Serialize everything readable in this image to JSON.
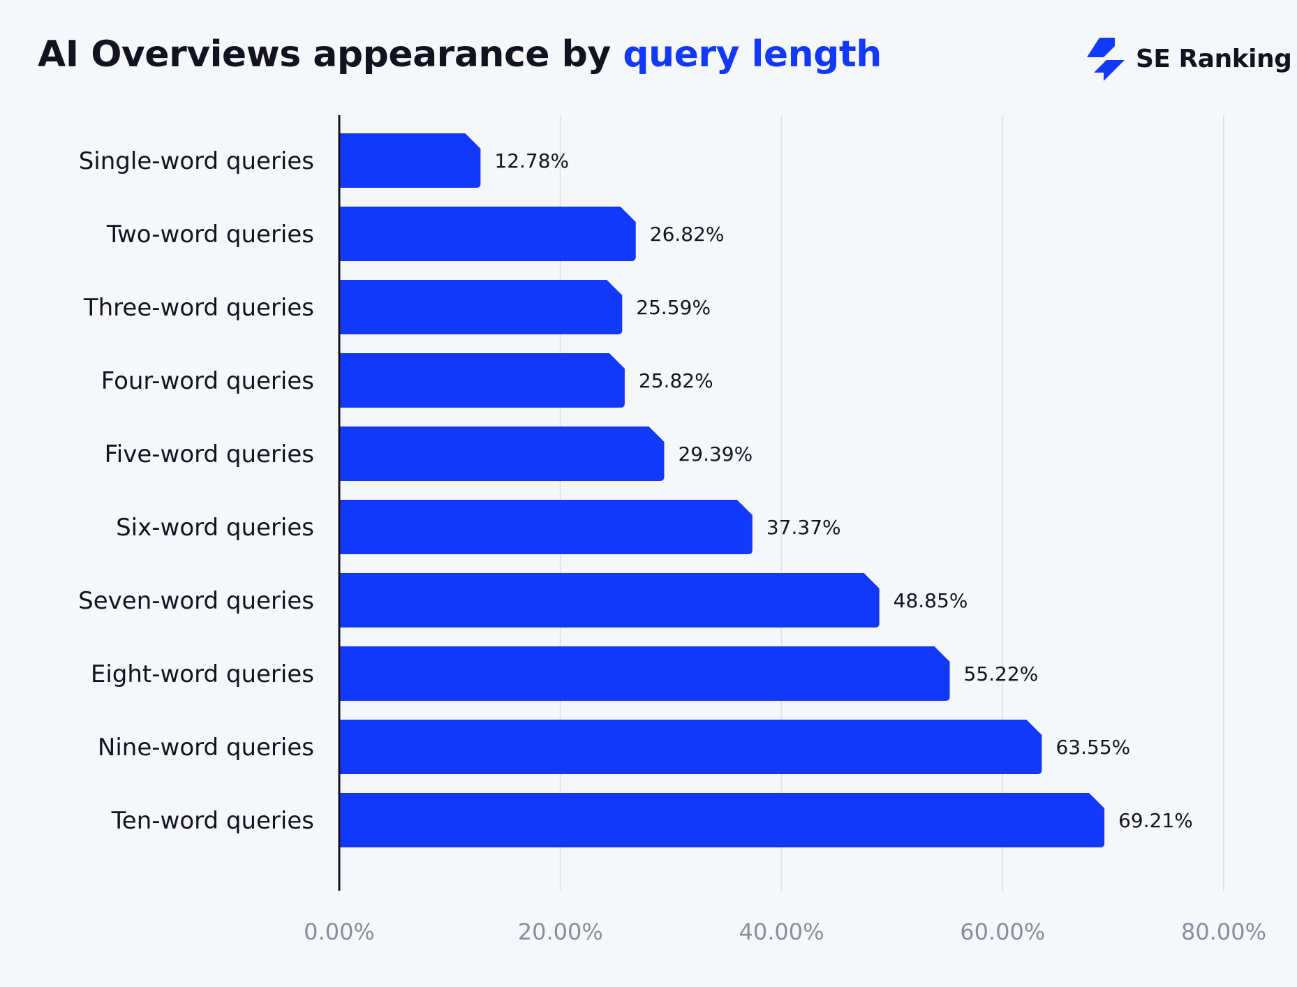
{
  "title": {
    "prefix": "AI Overviews appearance by ",
    "highlight": "query length"
  },
  "logo": {
    "text": "SE Ranking",
    "icon": "se-ranking-bolt-icon"
  },
  "colors": {
    "bar": "#1239fa",
    "highlight": "#1239fa",
    "grid": "#dde3ee",
    "axis": "#12131f"
  },
  "chart_data": {
    "type": "bar",
    "orientation": "horizontal",
    "title": "AI Overviews appearance by query length",
    "categories": [
      "Single-word queries",
      "Two-word queries",
      "Three-word queries",
      "Four-word queries",
      "Five-word queries",
      "Six-word queries",
      "Seven-word queries",
      "Eight-word queries",
      "Nine-word queries",
      "Ten-word queries"
    ],
    "values": [
      12.78,
      26.82,
      25.59,
      25.82,
      29.39,
      37.37,
      48.85,
      55.22,
      63.55,
      69.21
    ],
    "value_labels": [
      "12.78%",
      "26.82%",
      "25.59%",
      "25.82%",
      "29.39%",
      "37.37%",
      "48.85%",
      "55.22%",
      "63.55%",
      "69.21%"
    ],
    "xlim": [
      0,
      80
    ],
    "xticks": [
      0,
      20,
      40,
      60,
      80
    ],
    "xtick_labels": [
      "0.00%",
      "20.00%",
      "40.00%",
      "60.00%",
      "80.00%"
    ],
    "grid": "vertical",
    "legend": "none"
  }
}
